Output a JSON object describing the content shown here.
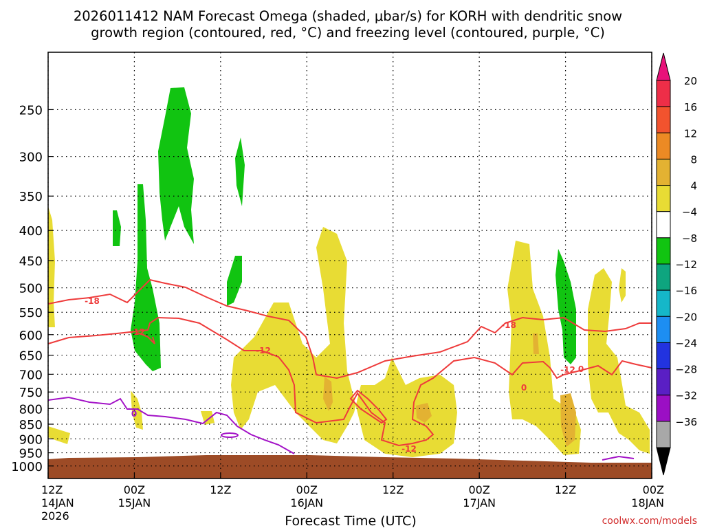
{
  "chart_data": {
    "type": "time-height cross section",
    "title_line1": "2026011412 NAM Forecast Omega (shaded, μbar/s) for KORH with dendritic snow",
    "title_line2": "growth region (contoured, red, °C) and freezing level (contoured, purple, °C)",
    "xlabel": "Forecast Time (UTC)",
    "credit": "coolwx.com/models",
    "x_ticks": [
      {
        "hours": 0,
        "l1": "12Z",
        "l2": "14JAN",
        "l3": "2026"
      },
      {
        "hours": 12,
        "l1": "00Z",
        "l2": "15JAN",
        "l3": ""
      },
      {
        "hours": 24,
        "l1": "12Z",
        "l2": "",
        "l3": ""
      },
      {
        "hours": 36,
        "l1": "00Z",
        "l2": "16JAN",
        "l3": ""
      },
      {
        "hours": 48,
        "l1": "12Z",
        "l2": "",
        "l3": ""
      },
      {
        "hours": 60,
        "l1": "00Z",
        "l2": "17JAN",
        "l3": ""
      },
      {
        "hours": 72,
        "l1": "12Z",
        "l2": "",
        "l3": ""
      },
      {
        "hours": 84,
        "l1": "00Z",
        "l2": "18JAN",
        "l3": ""
      }
    ],
    "x_range_hours": [
      0,
      84
    ],
    "y_axis": "pressure (hPa), log scale, inverted",
    "y_range_hpa": [
      200,
      1050
    ],
    "y_ticks": [
      250,
      300,
      350,
      400,
      450,
      500,
      550,
      600,
      650,
      700,
      750,
      800,
      850,
      900,
      950,
      1000
    ],
    "grid": true,
    "colorbar": {
      "labels": [
        "20",
        "16",
        "12",
        "8",
        "4",
        "−4",
        "−8",
        "−12",
        "−16",
        "−20",
        "−24",
        "−28",
        "−32",
        "−36"
      ],
      "colors": [
        "#ee2e48",
        "#f2532e",
        "#ec8a24",
        "#e3b232",
        "#e8dc34",
        "#ffffff",
        "#11c411",
        "#0ea57f",
        "#15b7c9",
        "#1d8ef2",
        "#2233e0",
        "#5a1fc4",
        "#9b0fc4",
        "#a8a8a8"
      ],
      "top_color": "#e8127a",
      "bottom_color": "#000000"
    },
    "contour_labels": {
      "red": [
        "-18",
        "-12",
        "-12",
        "-18",
        "-12",
        "0",
        "-12",
        "0"
      ],
      "purple": [
        "0"
      ]
    },
    "colors": {
      "ground": "#9d4b26",
      "red_contour": "#ee3b3b",
      "purple_contour": "#a312c7",
      "green": "#11c411",
      "yellow": "#e8dc34",
      "orange": "#e3b232"
    }
  }
}
